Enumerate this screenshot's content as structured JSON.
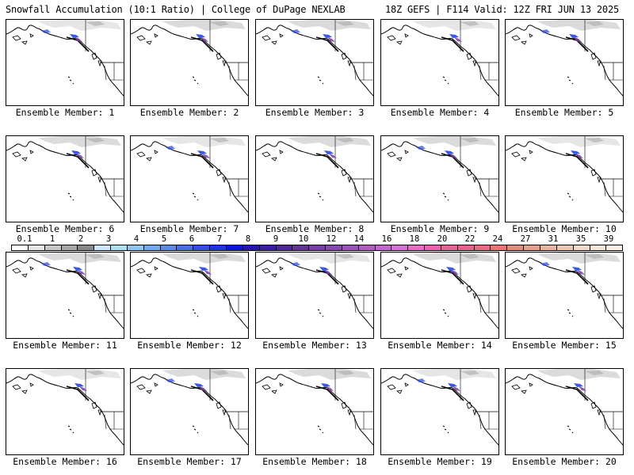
{
  "header": {
    "title_left": "Snowfall Accumulation (10:1 Ratio) | College of DuPage NEXLAB",
    "title_right": "18Z GEFS | F114 Valid: 12Z FRI JUN 13 2025"
  },
  "panels": [
    {
      "label": "Ensemble Member: 1"
    },
    {
      "label": "Ensemble Member: 2"
    },
    {
      "label": "Ensemble Member: 3"
    },
    {
      "label": "Ensemble Member: 4"
    },
    {
      "label": "Ensemble Member: 5"
    },
    {
      "label": "Ensemble Member: 6"
    },
    {
      "label": "Ensemble Member: 7"
    },
    {
      "label": "Ensemble Member: 8"
    },
    {
      "label": "Ensemble Member: 9"
    },
    {
      "label": "Ensemble Member: 10"
    },
    {
      "label": "Ensemble Member: 11"
    },
    {
      "label": "Ensemble Member: 12"
    },
    {
      "label": "Ensemble Member: 13"
    },
    {
      "label": "Ensemble Member: 14"
    },
    {
      "label": "Ensemble Member: 15"
    },
    {
      "label": "Ensemble Member: 16"
    },
    {
      "label": "Ensemble Member: 17"
    },
    {
      "label": "Ensemble Member: 18"
    },
    {
      "label": "Ensemble Member: 19"
    },
    {
      "label": "Ensemble Member: 20"
    }
  ],
  "colorbar": {
    "labels": [
      "0.1",
      "1",
      "2",
      "3",
      "4",
      "5",
      "6",
      "7",
      "8",
      "9",
      "10",
      "12",
      "14",
      "16",
      "18",
      "20",
      "22",
      "24",
      "27",
      "31",
      "35",
      "39"
    ],
    "colors": [
      "#ffffff",
      "#e6e6e6",
      "#c8c8c8",
      "#a8a8a8",
      "#888888",
      "#cce8ff",
      "#aee0f5",
      "#8cc8f5",
      "#6eaaf0",
      "#5a8ce6",
      "#4670e6",
      "#3250e6",
      "#1e32e6",
      "#0a14dc",
      "#2814b4",
      "#3c1ea0",
      "#502896",
      "#643296",
      "#7a3ca8",
      "#8c46b4",
      "#a050be",
      "#b45ac8",
      "#c864d2",
      "#dc6edc",
      "#e66ec8",
      "#e664b4",
      "#e6649a",
      "#e6648c",
      "#e66e82",
      "#e6786e",
      "#e68c7a",
      "#e6a08c",
      "#eab4a0",
      "#eec8b4",
      "#f2dcc8",
      "#f6e6d6",
      "#faf0e6"
    ]
  },
  "map_colors": {
    "snow_light": "#d2d2d2",
    "snow_mid": "#a8a8a8",
    "snow_blue": "#2846e6",
    "snow_purple": "#7a3ca8",
    "coast": "#000000"
  }
}
